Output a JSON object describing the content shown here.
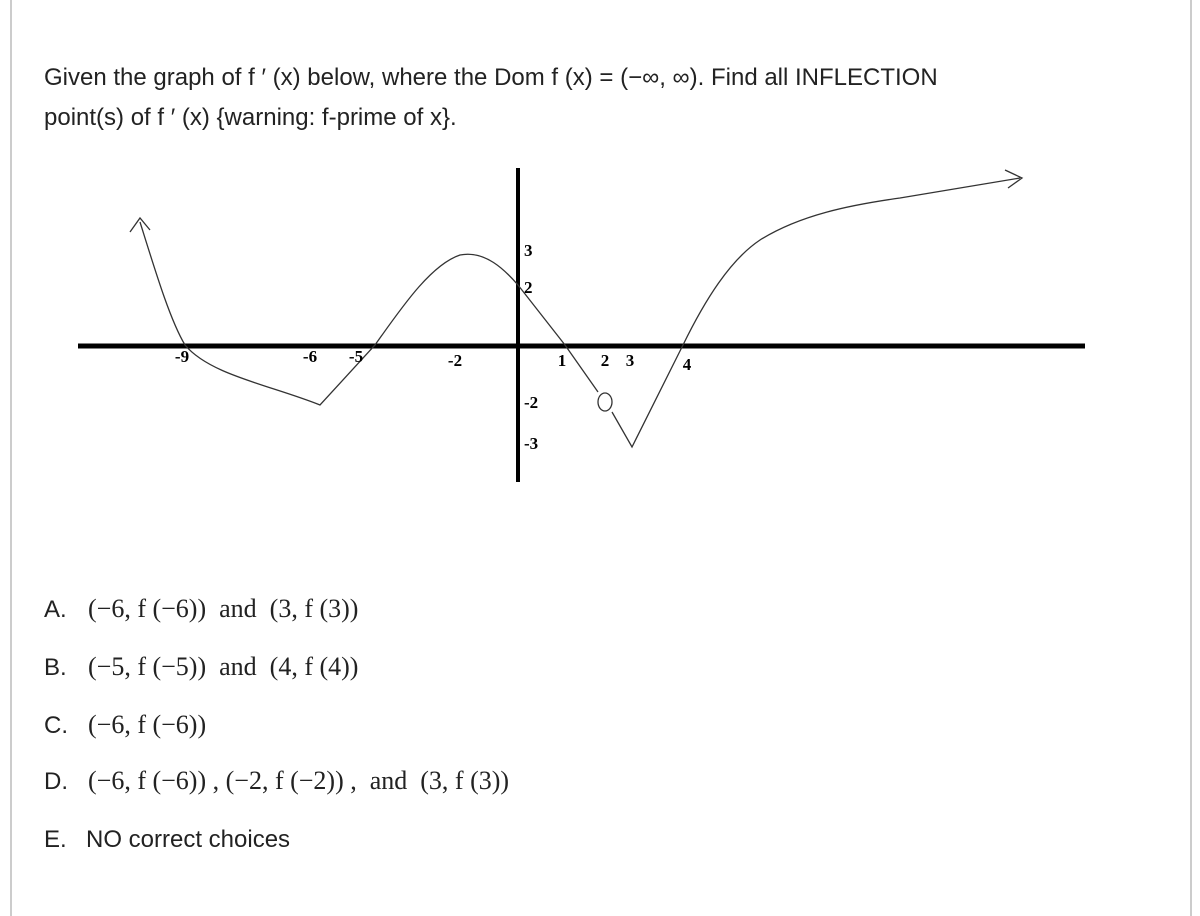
{
  "question": {
    "lines": [
      "Given the graph of f ′ (x) below, where the Dom f (x) = (−∞, ∞). Find all INFLECTION",
      "point(s) of f ′ (x) {warning: f-prime of x}."
    ]
  },
  "graph": {
    "x_labels": [
      "-9",
      "-6",
      "-5",
      "-2",
      "1",
      "2",
      "3",
      "4"
    ],
    "y_labels": [
      "3",
      "2",
      "-2",
      "-3"
    ]
  },
  "choices": [
    {
      "letter": "A.",
      "text": "(−6, f (−6))  and  (3, f (3))"
    },
    {
      "letter": "B.",
      "text": "(−5, f (−5))  and  (4, f (4))"
    },
    {
      "letter": "C.",
      "text": "(−6, f (−6))"
    },
    {
      "letter": "D.",
      "text": "(−6, f (−6)) , (−2, f (−2)) ,  and  (3, f (3))"
    },
    {
      "letter": "E.",
      "text": "NO correct choices"
    }
  ]
}
